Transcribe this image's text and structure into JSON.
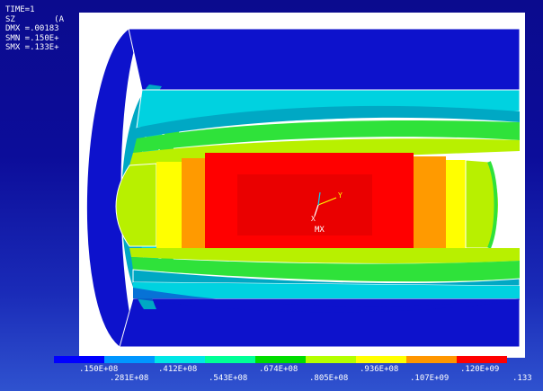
{
  "info": {
    "lines": [
      "TIME=1",
      "SZ        (A",
      "DMX =.00183",
      "SMN =.150E+",
      "SMX =.133E+"
    ]
  },
  "labels": {
    "mx": "MX",
    "y_axis": "Y",
    "x_axis": "X"
  },
  "legend": {
    "colors": [
      "#0000ff",
      "#0096ff",
      "#00e6e6",
      "#00ff96",
      "#00dc00",
      "#b4ff00",
      "#ffff00",
      "#ff9600",
      "#ff0000"
    ],
    "ticks": [
      ".150E+08",
      ".281E+08",
      ".412E+08",
      ".543E+08",
      ".674E+08",
      ".805E+08",
      ".936E+08",
      ".107E+09",
      ".120E+09",
      ".133"
    ]
  },
  "palette": {
    "outer": "#0d12cc",
    "outer_shadow": "#0509a0",
    "cyan": "#00d2e0",
    "teal": "#00a8c4",
    "green": "#2fe23a",
    "lime": "#b8f000",
    "yellow": "#ffff00",
    "orange": "#ff9a00",
    "red": "#ff0000",
    "dark_red": "#d80000"
  }
}
